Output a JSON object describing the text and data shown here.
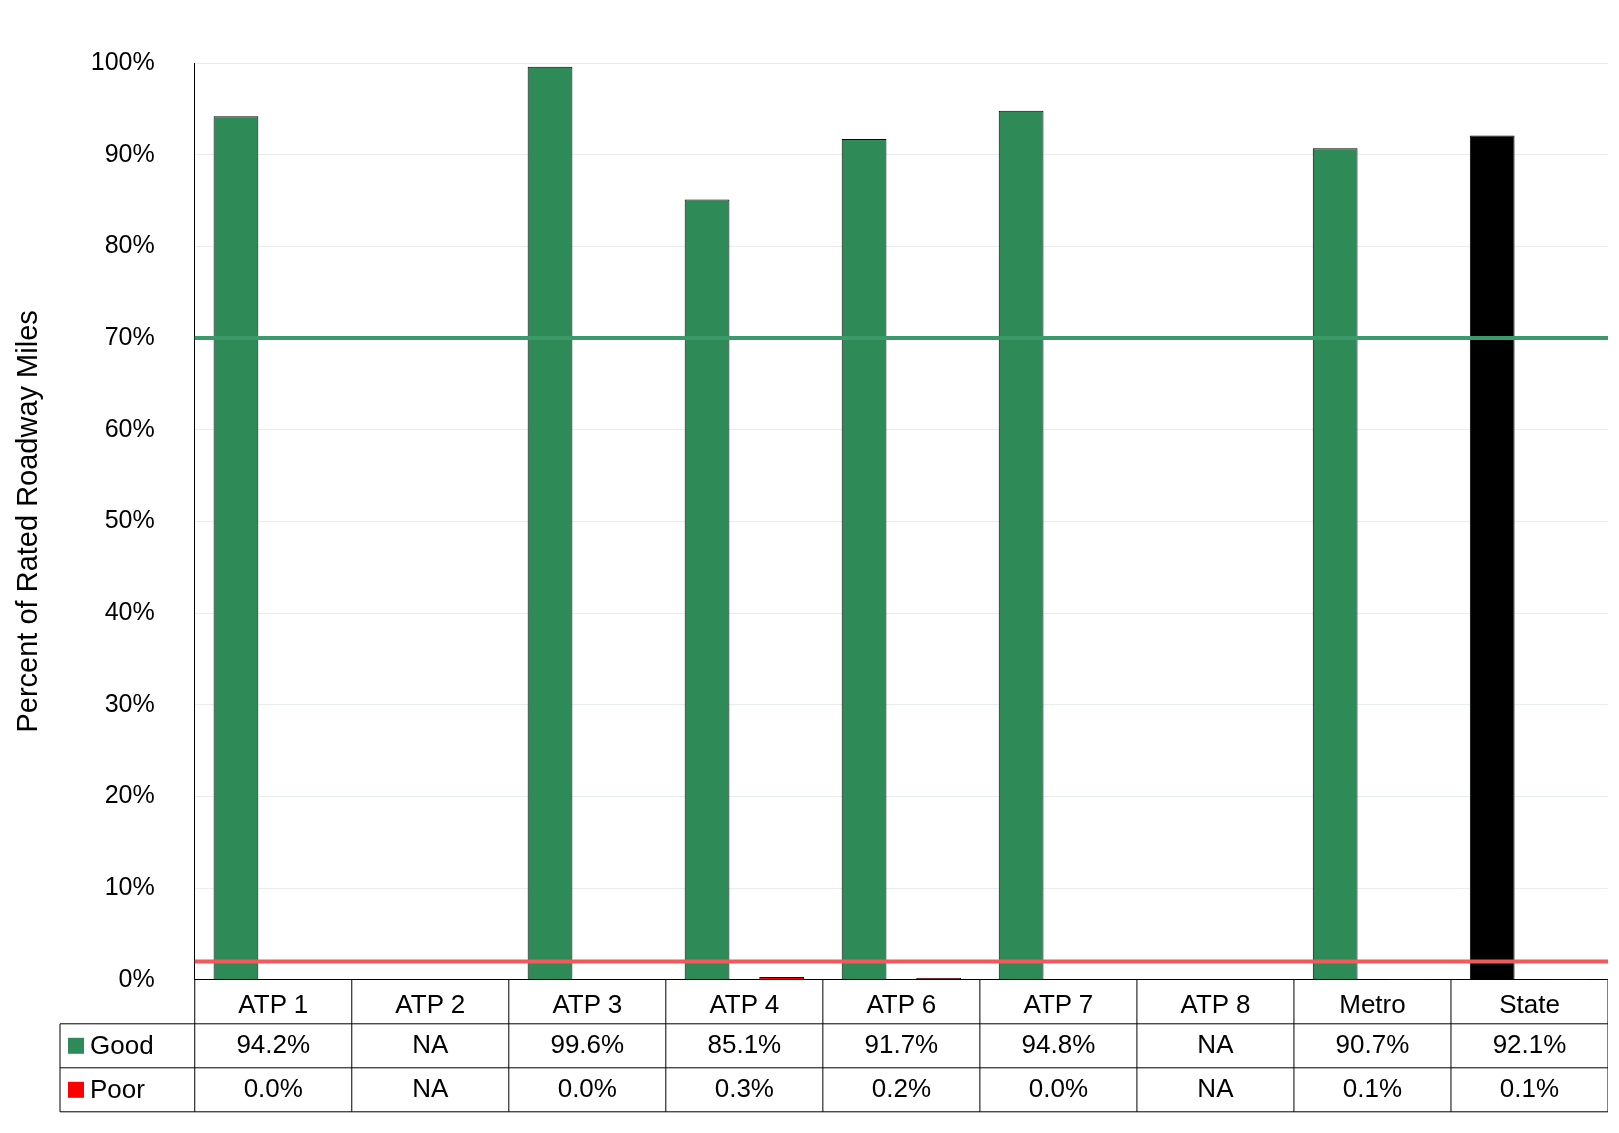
{
  "chart_data": {
    "type": "bar",
    "ylabel": "Percent of Rated Roadway Miles",
    "categories": [
      "ATP 1",
      "ATP 2",
      "ATP 3",
      "ATP 4",
      "ATP 6",
      "ATP 7",
      "ATP 8",
      "Metro",
      "State"
    ],
    "series": [
      {
        "name": "Good",
        "color": "#2e8b57",
        "colors": [
          "#2e8b57",
          "#2e8b57",
          "#2e8b57",
          "#2e8b57",
          "#2e8b57",
          "#2e8b57",
          "#2e8b57",
          "#2e8b57",
          "#000000"
        ],
        "values": [
          94.2,
          null,
          99.6,
          85.1,
          91.7,
          94.8,
          null,
          90.7,
          92.1
        ],
        "value_labels": [
          "94.2%",
          "NA",
          "99.6%",
          "85.1%",
          "91.7%",
          "94.8%",
          "NA",
          "90.7%",
          "92.1%"
        ]
      },
      {
        "name": "Poor",
        "color": "#ff0000",
        "values": [
          0.0,
          null,
          0.0,
          0.3,
          0.2,
          0.0,
          null,
          0.1,
          0.1
        ],
        "value_labels": [
          "0.0%",
          "NA",
          "0.0%",
          "0.3%",
          "0.2%",
          "0.0%",
          "NA",
          "0.1%",
          "0.1%"
        ]
      }
    ],
    "ylim": [
      0,
      100
    ],
    "yticks": [
      {
        "value": 0,
        "label": "0%"
      },
      {
        "value": 10,
        "label": "10%"
      },
      {
        "value": 20,
        "label": "20%"
      },
      {
        "value": 30,
        "label": "30%"
      },
      {
        "value": 40,
        "label": "40%"
      },
      {
        "value": 50,
        "label": "50%"
      },
      {
        "value": 60,
        "label": "60%"
      },
      {
        "value": 70,
        "label": "70%"
      },
      {
        "value": 80,
        "label": "80%"
      },
      {
        "value": 90,
        "label": "90%"
      },
      {
        "value": 100,
        "label": "100%"
      }
    ],
    "grid": "y",
    "legend": "bottom left",
    "ref_lines": [
      {
        "axis": "y",
        "value": 70,
        "color": "#3a9a6a"
      },
      {
        "axis": "y",
        "value": 2,
        "color": "#f05a5a"
      }
    ]
  }
}
